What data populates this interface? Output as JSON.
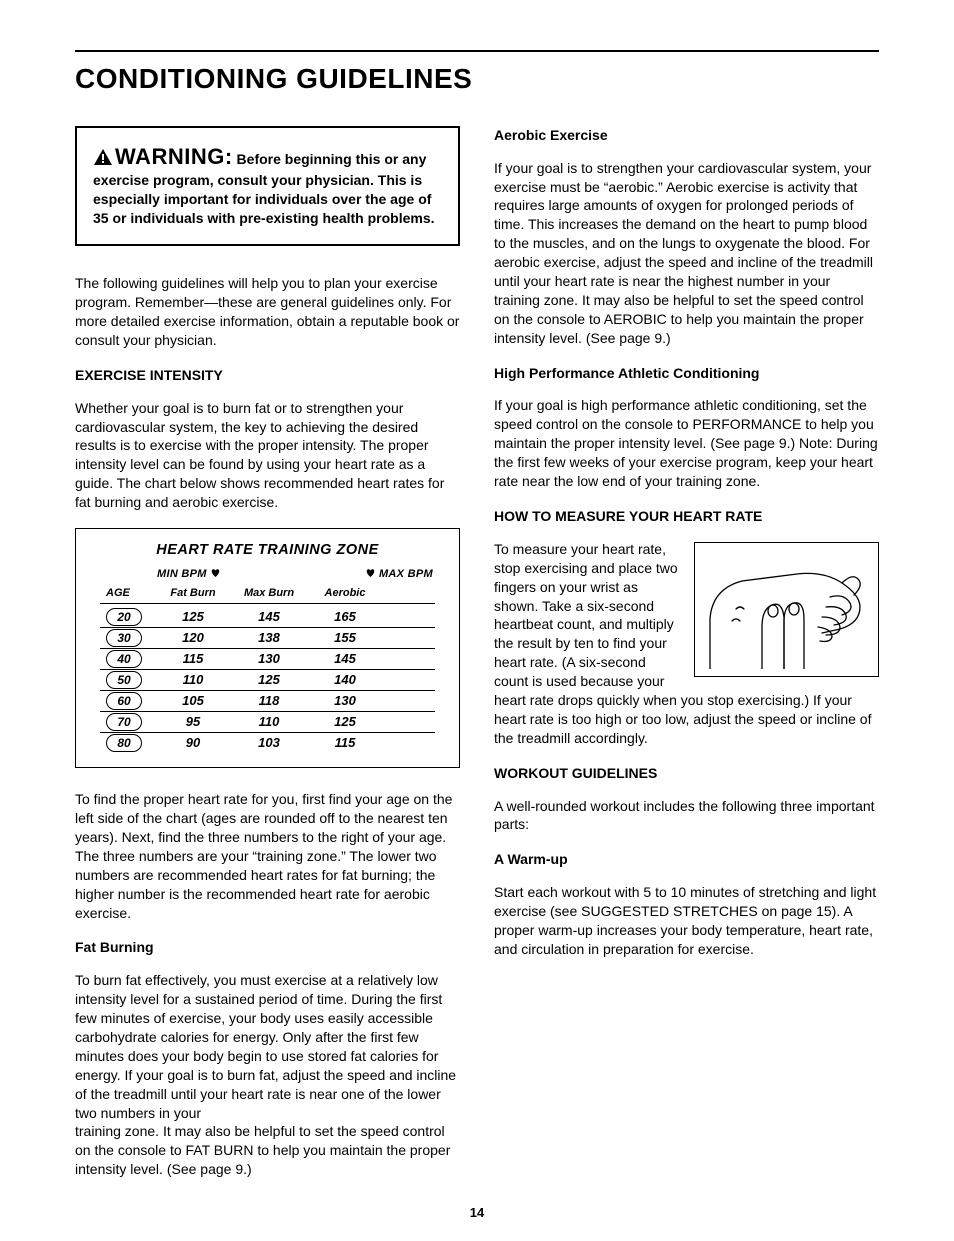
{
  "page_title": "CONDITIONING GUIDELINES",
  "warning": {
    "label": "WARNING:",
    "body_lead": "Before beginning",
    "body_rest": "this or any exercise program, consult your physician. This is especially important for individuals over the age of 35 or individuals with pre-existing health problems."
  },
  "intro_para": "The following guidelines will help you to plan your exercise program. Remember—these are general guidelines only. For more detailed exercise information, obtain a reputable book or consult your physician.",
  "exercise_intensity": {
    "heading": "EXERCISE INTENSITY",
    "para": "Whether your goal is to burn fat or to strengthen your cardiovascular system, the key to achieving the desired results is to exercise with the proper intensity. The proper intensity level can be found by using your heart rate as a guide. The chart below shows recommended heart rates for fat burning and aerobic exercise."
  },
  "chart": {
    "title": "HEART RATE TRAINING ZONE",
    "min_bpm_label": "MIN BPM",
    "max_bpm_label": "MAX BPM",
    "columns": {
      "age": "AGE",
      "fat_burn": "Fat Burn",
      "max_burn": "Max Burn",
      "aerobic": "Aerobic"
    },
    "rows": [
      {
        "age": "20",
        "fat_burn": "125",
        "max_burn": "145",
        "aerobic": "165"
      },
      {
        "age": "30",
        "fat_burn": "120",
        "max_burn": "138",
        "aerobic": "155"
      },
      {
        "age": "40",
        "fat_burn": "115",
        "max_burn": "130",
        "aerobic": "145"
      },
      {
        "age": "50",
        "fat_burn": "110",
        "max_burn": "125",
        "aerobic": "140"
      },
      {
        "age": "60",
        "fat_burn": "105",
        "max_burn": "118",
        "aerobic": "130"
      },
      {
        "age": "70",
        "fat_burn": "95",
        "max_burn": "110",
        "aerobic": "125"
      },
      {
        "age": "80",
        "fat_burn": "90",
        "max_burn": "103",
        "aerobic": "115"
      }
    ],
    "border_color": "#000000",
    "font_style": "italic-bold"
  },
  "chart_explain": "To find the proper heart rate for you, first find your age on the left side of the chart (ages are rounded off to the nearest ten years). Next, find the three numbers to the right of your age. The three numbers are your “training zone.” The lower two numbers are recommended heart rates for fat burning; the higher number is the recommended heart rate for aerobic exercise.",
  "fat_burning": {
    "heading": "Fat Burning",
    "para1": "To burn fat effectively, you must exercise at a relatively low intensity level for a sustained period of time. During the first few minutes of exercise, your body uses easily accessible carbohydrate calories for energy. Only after the first few minutes does your body begin to use stored fat calories for energy. If your goal is to burn fat, adjust the speed and incline of the treadmill until your heart rate is near one of the lower two numbers in your",
    "para2": "training zone. It may also be helpful to set the speed control on the console to FAT BURN to help you maintain the proper intensity level. (See page 9.)"
  },
  "aerobic": {
    "heading": "Aerobic Exercise",
    "para": "If your goal is to strengthen your cardiovascular system, your exercise must be “aerobic.” Aerobic exercise is activity that requires large amounts of oxygen for prolonged periods of time. This increases the demand on the heart to pump blood to the muscles, and on the lungs to oxygenate the blood. For aerobic exercise, adjust the speed and incline of the treadmill until your heart rate is near the highest number in your training zone. It may also be helpful to set the speed control on the console to AEROBIC to help you maintain the proper intensity level. (See page 9.)"
  },
  "high_perf": {
    "heading": "High Performance Athletic Conditioning",
    "para": "If your goal is high performance athletic conditioning, set the speed control on the console to PERFORMANCE to help you maintain the proper intensity level. (See page 9.) Note: During the first few weeks of your exercise program, keep your heart rate near the low end of your training zone."
  },
  "measure": {
    "heading": "HOW TO MEASURE YOUR HEART RATE",
    "para_wrap": "To measure your heart rate, stop exercising and place two fingers on your wrist as shown. Take a six-second heartbeat count, and multiply the result by ten to find your heart",
    "para_after": "rate. (A six-second count is used because your heart rate drops quickly when you stop exercising.) If your heart rate is too high or too low, adjust the speed or incline of the treadmill accordingly."
  },
  "workout": {
    "heading": "WORKOUT GUIDELINES",
    "intro": "A well-rounded workout includes the following three important parts:",
    "warmup_heading": "A Warm-up",
    "warmup_para": "Start each workout with 5 to 10 minutes of stretching and light exercise (see SUGGESTED STRETCHES on page 15). A proper warm-up increases your body temperature, heart rate, and circulation in preparation for exercise."
  },
  "page_number": "14",
  "colors": {
    "text": "#000000",
    "background": "#ffffff",
    "rule": "#000000"
  }
}
